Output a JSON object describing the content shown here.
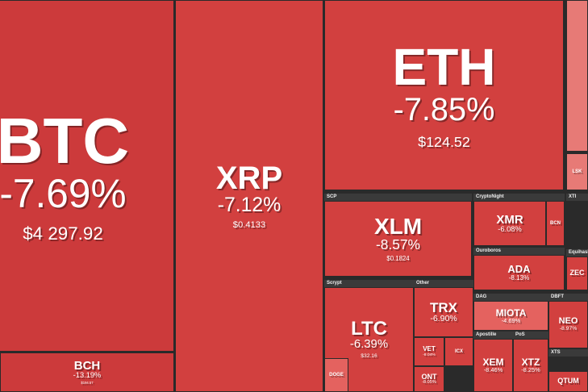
{
  "tiles": [
    {
      "label": "BTC",
      "change": "-7.69%",
      "price": "$4 297.92"
    },
    {
      "label": "BCH",
      "change": "-13.19%",
      "price": "$194.57"
    },
    {
      "label": "XRP",
      "change": "-7.12%",
      "price": "$0.4133"
    },
    {
      "label": "ETH",
      "change": "-7.85%",
      "price": "$124.52"
    },
    {
      "label": "XLM",
      "change": "-8.57%",
      "price": "$0.1824"
    },
    {
      "label": "XMR",
      "change": "-6.08%"
    },
    {
      "label": "BCN"
    },
    {
      "label": "ADA",
      "change": "-8.13%"
    },
    {
      "label": "LTC",
      "change": "-6.39%",
      "price": "$32.16"
    },
    {
      "label": "TRX",
      "change": "-6.90%"
    },
    {
      "label": "VET",
      "change": "-8.04%"
    },
    {
      "label": "ICX"
    },
    {
      "label": "ONT",
      "change": "-8.05%"
    },
    {
      "label": "DOGE"
    },
    {
      "label": "MIOTA",
      "change": "-4.69%"
    },
    {
      "label": "NEO",
      "change": "-8.97%"
    },
    {
      "label": "XEM",
      "change": "-8.46%"
    },
    {
      "label": "XTZ",
      "change": "-8.25%"
    },
    {
      "label": "QTUM"
    },
    {
      "label": "ZEC"
    },
    {
      "label": "LSK"
    }
  ],
  "sections": [
    "SCP",
    "CryptoNight",
    "XTI",
    "Ouroboros",
    "Equihash",
    "Scrypt",
    "Other",
    "DAG",
    "DBFT",
    "Apostille",
    "PoS",
    "XTS"
  ]
}
